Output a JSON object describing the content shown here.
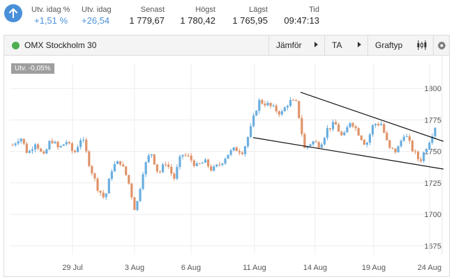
{
  "quote": {
    "stats": [
      {
        "label": "Utv. idag %",
        "value": "+1,51 %"
      },
      {
        "label": "Utv. idag",
        "value": "+26,54"
      },
      {
        "label": "Senast",
        "value": "1 779,67"
      },
      {
        "label": "Högst",
        "value": "1 780,42"
      },
      {
        "label": "Lägst",
        "value": "1 765,95"
      },
      {
        "label": "Tid",
        "value": "09:47:13"
      }
    ],
    "trend_icon": "arrow-up-icon",
    "accent_color": "#4a90d9"
  },
  "toolbar": {
    "instrument": "OMX Stockholm 30",
    "compare_label": "Jämför",
    "ta_label": "TA",
    "charttype_label": "Graftyp",
    "live_color": "#4caf50"
  },
  "chart": {
    "change_badge": "Utv. -0,05%",
    "up_color": "#6aaee0",
    "down_color": "#e0936a"
  },
  "chart_data": {
    "type": "candlestick",
    "x_ticks": [
      "29 Jul",
      "3 Aug",
      "6 Aug",
      "11 Aug",
      "14 Aug",
      "19 Aug",
      "24 Aug"
    ],
    "y_ticks": [
      "1800",
      "1775",
      "1750",
      "1725",
      "1700",
      "1675"
    ],
    "ylim": [
      1668,
      1820
    ],
    "grid": true,
    "series": [
      {
        "approx_close_path": [
          1755,
          1762,
          1748,
          1758,
          1745,
          1760,
          1752,
          1758,
          1748,
          1762,
          1740,
          1722,
          1712,
          1738,
          1742,
          1728,
          1702,
          1735,
          1750,
          1732,
          1742,
          1728,
          1748,
          1745,
          1738,
          1742,
          1735,
          1740,
          1748,
          1752,
          1750,
          1768,
          1790,
          1788,
          1784,
          1780,
          1790,
          1788,
          1752,
          1758,
          1755,
          1768,
          1772,
          1760,
          1775,
          1765,
          1755,
          1772,
          1772,
          1752,
          1750,
          1765,
          1752,
          1742,
          1755,
          1770
        ]
      }
    ],
    "trendlines": [
      {
        "name": "upper",
        "from": [
          "13 Aug",
          1797
        ],
        "to": [
          "24 Aug",
          1758
        ]
      },
      {
        "name": "lower",
        "from": [
          "10 Aug",
          1761
        ],
        "to": [
          "24 Aug",
          1736
        ]
      }
    ]
  }
}
